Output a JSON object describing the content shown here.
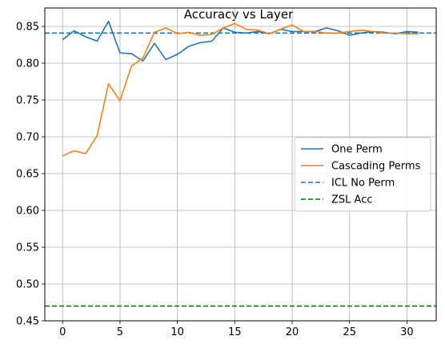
{
  "chart_data": {
    "type": "line",
    "title": "Accuracy vs Layer",
    "xlabel": "",
    "ylabel": "",
    "xlim": [
      -1.55,
      32.55
    ],
    "ylim": [
      0.45,
      0.875
    ],
    "xticks": [
      0,
      5,
      10,
      15,
      20,
      25,
      30
    ],
    "yticks": [
      0.45,
      0.5,
      0.55,
      0.6,
      0.65,
      0.7,
      0.75,
      0.8,
      0.85
    ],
    "ytick_labels": [
      "0.45",
      "0.50",
      "0.55",
      "0.60",
      "0.65",
      "0.70",
      "0.75",
      "0.80",
      "0.85"
    ],
    "grid": true,
    "legend_position": "center-right",
    "x": [
      0,
      1,
      2,
      3,
      4,
      5,
      6,
      7,
      8,
      9,
      10,
      11,
      12,
      13,
      14,
      15,
      16,
      17,
      18,
      19,
      20,
      21,
      22,
      23,
      24,
      25,
      26,
      27,
      28,
      29,
      30,
      31
    ],
    "series": [
      {
        "name": "One Perm",
        "color": "#1f77b4",
        "style": "solid",
        "values": [
          0.832,
          0.844,
          0.836,
          0.83,
          0.857,
          0.814,
          0.813,
          0.803,
          0.827,
          0.805,
          0.812,
          0.823,
          0.828,
          0.83,
          0.848,
          0.842,
          0.841,
          0.843,
          0.84,
          0.846,
          0.843,
          0.843,
          0.843,
          0.848,
          0.844,
          0.838,
          0.841,
          0.843,
          0.842,
          0.84,
          0.843,
          0.842
        ]
      },
      {
        "name": "Cascading Perms",
        "color": "#ff7f0e",
        "style": "solid",
        "values": [
          0.674,
          0.681,
          0.677,
          0.701,
          0.772,
          0.749,
          0.796,
          0.807,
          0.842,
          0.848,
          0.84,
          0.842,
          0.838,
          0.839,
          0.848,
          0.854,
          0.846,
          0.845,
          0.84,
          0.846,
          0.852,
          0.843,
          0.843,
          0.841,
          0.841,
          0.843,
          0.845,
          0.843,
          0.841,
          0.841,
          0.84,
          0.84
        ]
      }
    ],
    "hlines": [
      {
        "name": "ICL No Perm",
        "color": "#1f77b4",
        "style": "dashed",
        "value": 0.841
      },
      {
        "name": "ZSL Acc",
        "color": "#008000",
        "style": "dashed",
        "value": 0.47
      }
    ]
  }
}
